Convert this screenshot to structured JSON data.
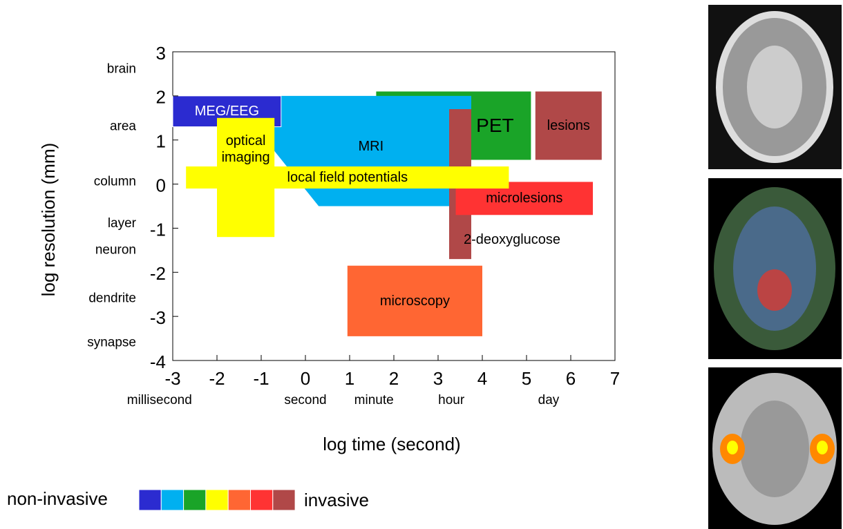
{
  "chart_data": {
    "type": "range",
    "x_label": "log time (second)",
    "y_label": "log resolution (mm)",
    "xlim": [
      -3,
      7
    ],
    "xticks": [
      -3,
      -2,
      -1,
      0,
      1,
      2,
      3,
      4,
      5,
      6,
      7
    ],
    "ylim": [
      -4,
      3
    ],
    "yticks": [
      -4,
      -3,
      -2,
      -1,
      0,
      1,
      2,
      3
    ],
    "x_annotations": [
      {
        "label": "millisecond",
        "value": -3.3
      },
      {
        "label": "second",
        "value": 0
      },
      {
        "label": "minute",
        "value": 1.55
      },
      {
        "label": "hour",
        "value": 3.3
      },
      {
        "label": "day",
        "value": 5.5
      }
    ],
    "y_annotations": [
      {
        "label": "brain",
        "value": 2.6
      },
      {
        "label": "area",
        "value": 1.3
      },
      {
        "label": "column",
        "value": 0.05
      },
      {
        "label": "layer",
        "value": -0.9
      },
      {
        "label": "neuron",
        "value": -1.5
      },
      {
        "label": "dendrite",
        "value": -2.6
      },
      {
        "label": "synapse",
        "value": -3.6
      }
    ],
    "items": [
      {
        "name": "PET",
        "color": "#1aa428",
        "x": [
          1.6,
          5.1
        ],
        "y": [
          0.55,
          2.1
        ]
      },
      {
        "name": "MRI",
        "color": "#00b0f0",
        "x": [
          -1.1,
          3.75,
          3.75,
          0.3,
          -0.9
        ],
        "y": [
          2,
          2,
          -0.5,
          -0.5,
          1
        ]
      },
      {
        "name": "MEG/EEG",
        "color": "#2b2bd0",
        "x": [
          -3,
          -0.55
        ],
        "y": [
          1.3,
          2
        ]
      },
      {
        "name": "optical imaging",
        "color": "#ffff00",
        "x": [
          -2,
          -0.7
        ],
        "y": [
          -1.2,
          1.5
        ]
      },
      {
        "name": "lesions",
        "color": "#b04848",
        "x": [
          5.2,
          6.7
        ],
        "y": [
          0.55,
          2.1
        ]
      },
      {
        "name": "2-deoxyglucose",
        "color": "#b04848",
        "x": [
          3.25,
          3.75
        ],
        "y": [
          -1.7,
          1.7
        ]
      },
      {
        "name": "microlesions",
        "color": "#ff3333",
        "x": [
          3.4,
          6.5
        ],
        "y": [
          -0.7,
          0.05
        ]
      },
      {
        "name": "local field potentials",
        "color": "#ffff00",
        "x": [
          -2.7,
          4.6
        ],
        "y": [
          -0.1,
          0.4
        ]
      },
      {
        "name": "microscopy",
        "color": "#ff6633",
        "x": [
          0.95,
          4
        ],
        "y": [
          -3.45,
          -1.85
        ]
      }
    ],
    "scale": {
      "low": "non-invasive",
      "high": "invasive",
      "colors": [
        "#2b2bd0",
        "#00b0f0",
        "#1aa428",
        "#ffff00",
        "#ff6633",
        "#ff3333",
        "#b04848"
      ]
    }
  }
}
